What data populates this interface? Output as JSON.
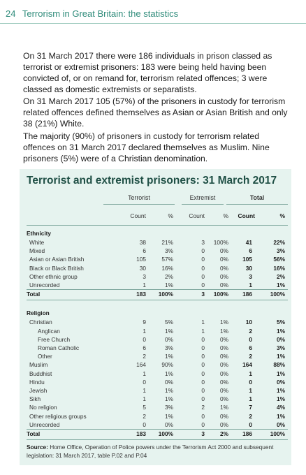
{
  "header": {
    "page_number": "24",
    "title": "Terrorism in Great Britain: the statistics"
  },
  "paragraphs": [
    "On 31 March 2017 there were 186 individuals in prison classed as terrorist or extremist prisoners: 183 were being held having been convicted of, or on remand for, terrorism related offences; 3 were classed as domestic extremists or separatists.",
    "On 31 March 2017 105 (57%) of the prisoners in custody for terrorism related offences defined themselves as Asian or Asian British and only 38 (21%) White.",
    "The majority (90%) of prisoners in custody for terrorism related offences on 31 March 2017 declared themselves as Muslim. Nine prisoners (5%) were of a Christian denomination."
  ],
  "table": {
    "title": "Terrorist and extremist prisoners: 31 March 2017",
    "groups": [
      "Terrorist",
      "Extremist",
      "Total"
    ],
    "subheaders": [
      "Count",
      "%",
      "Count",
      "%",
      "Count",
      "%"
    ],
    "ethnicity_header": "Ethnicity",
    "ethnicity": [
      {
        "label": "White",
        "v": [
          "38",
          "21%",
          "3",
          "100%",
          "41",
          "22%"
        ]
      },
      {
        "label": "Mixed",
        "v": [
          "6",
          "3%",
          "0",
          "0%",
          "6",
          "3%"
        ]
      },
      {
        "label": "Asian or Asian British",
        "v": [
          "105",
          "57%",
          "0",
          "0%",
          "105",
          "56%"
        ]
      },
      {
        "label": "Black or Black British",
        "v": [
          "30",
          "16%",
          "0",
          "0%",
          "30",
          "16%"
        ]
      },
      {
        "label": "Other ethnic group",
        "v": [
          "3",
          "2%",
          "0",
          "0%",
          "3",
          "2%"
        ]
      },
      {
        "label": "Unrecorded",
        "v": [
          "1",
          "1%",
          "0",
          "0%",
          "1",
          "1%"
        ]
      }
    ],
    "ethnicity_total": {
      "label": "Total",
      "v": [
        "183",
        "100%",
        "3",
        "100%",
        "186",
        "100%"
      ]
    },
    "religion_header": "Religion",
    "religion": [
      {
        "label": "Christian",
        "v": [
          "9",
          "5%",
          "1",
          "1%",
          "10",
          "5%"
        ]
      },
      {
        "label": "Anglican",
        "v": [
          "1",
          "1%",
          "1",
          "1%",
          "2",
          "1%"
        ]
      },
      {
        "label": "Free Church",
        "v": [
          "0",
          "0%",
          "0",
          "0%",
          "0",
          "0%"
        ]
      },
      {
        "label": "Roman Catholic",
        "v": [
          "6",
          "3%",
          "0",
          "0%",
          "6",
          "3%"
        ]
      },
      {
        "label": "Other",
        "v": [
          "2",
          "1%",
          "0",
          "0%",
          "2",
          "1%"
        ]
      },
      {
        "label": "Muslim",
        "v": [
          "164",
          "90%",
          "0",
          "0%",
          "164",
          "88%"
        ]
      },
      {
        "label": "Buddhist",
        "v": [
          "1",
          "1%",
          "0",
          "0%",
          "1",
          "1%"
        ]
      },
      {
        "label": "Hindu",
        "v": [
          "0",
          "0%",
          "0",
          "0%",
          "0",
          "0%"
        ]
      },
      {
        "label": "Jewish",
        "v": [
          "1",
          "1%",
          "0",
          "0%",
          "1",
          "1%"
        ]
      },
      {
        "label": "Sikh",
        "v": [
          "1",
          "1%",
          "0",
          "0%",
          "1",
          "1%"
        ]
      },
      {
        "label": "No religion",
        "v": [
          "5",
          "3%",
          "2",
          "1%",
          "7",
          "4%"
        ]
      },
      {
        "label": "Other religious groups",
        "v": [
          "2",
          "1%",
          "0",
          "0%",
          "2",
          "1%"
        ]
      },
      {
        "label": "Unrecorded",
        "v": [
          "0",
          "0%",
          "0",
          "0%",
          "0",
          "0%"
        ]
      }
    ],
    "religion_total": {
      "label": "Total",
      "v": [
        "183",
        "100%",
        "3",
        "2%",
        "186",
        "100%"
      ]
    },
    "source_label": "Source:",
    "source_text": " Home Office, Operation of Police powers under the Terrorism Act 2000 and subsequent legislation: 31 March 2017, table P.02 and P.04"
  },
  "colors": {
    "accent": "#2e8b7a",
    "panel": "#e6f3ef",
    "title": "#1f4f45"
  }
}
